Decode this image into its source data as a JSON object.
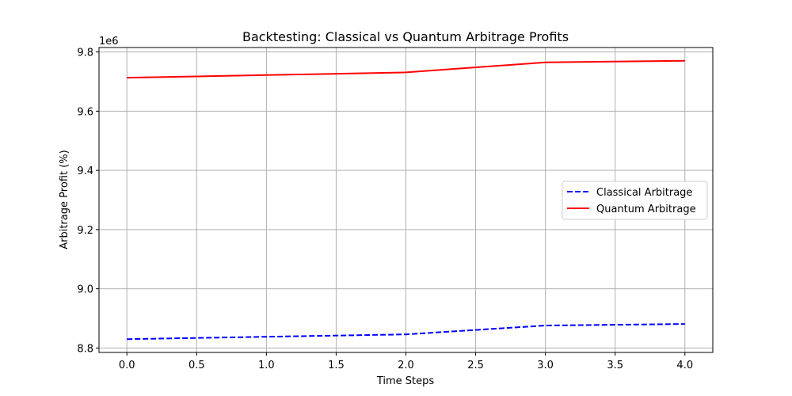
{
  "chart_data": {
    "type": "line",
    "title": "Backtesting: Classical vs Quantum Arbitrage Profits",
    "xlabel": "Time Steps",
    "ylabel": "Arbitrage Profit (%)",
    "y_offset_label": "1e6",
    "xlim": [
      -0.2,
      4.2
    ],
    "ylim": [
      8785000,
      9815000
    ],
    "xticks": [
      0.0,
      0.5,
      1.0,
      1.5,
      2.0,
      2.5,
      3.0,
      3.5,
      4.0
    ],
    "xtick_labels": [
      "0.0",
      "0.5",
      "1.0",
      "1.5",
      "2.0",
      "2.5",
      "3.0",
      "3.5",
      "4.0"
    ],
    "yticks": [
      8800000,
      9000000,
      9200000,
      9400000,
      9600000,
      9800000
    ],
    "ytick_labels": [
      "8.8",
      "9.0",
      "9.2",
      "9.4",
      "9.6",
      "9.8"
    ],
    "grid": true,
    "legend_position": "center-right",
    "x": [
      0,
      1,
      2,
      3,
      4
    ],
    "series": [
      {
        "name": "Classical Arbitrage",
        "values": [
          8830000,
          8838000,
          8846000,
          8876000,
          8881000
        ],
        "color": "#0000ff",
        "style": "dashed"
      },
      {
        "name": "Quantum Arbitrage",
        "values": [
          9713000,
          9722000,
          9731000,
          9765000,
          9770000
        ],
        "color": "#ff0000",
        "style": "solid"
      }
    ]
  }
}
